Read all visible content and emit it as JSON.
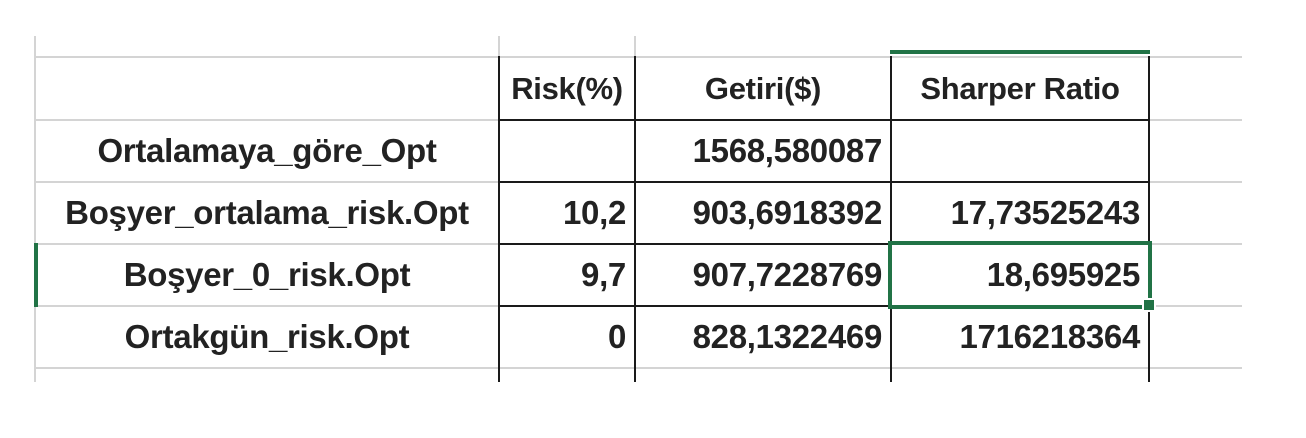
{
  "table": {
    "headers": [
      "",
      "Risk(%)",
      "Getiri($)",
      "Sharper Ratio"
    ],
    "rows": [
      {
        "label": "Ortalamaya_göre_Opt",
        "risk": "",
        "getiri": "1568,580087",
        "sharpe": ""
      },
      {
        "label": "Boşyer_ortalama_risk.Opt",
        "risk": "10,2",
        "getiri": "903,6918392",
        "sharpe": "17,73525243"
      },
      {
        "label": "Boşyer_0_risk.Opt",
        "risk": "9,7",
        "getiri": "907,7228769",
        "sharpe": "18,695925"
      },
      {
        "label": "Ortakgün_risk.Opt",
        "risk": "0",
        "getiri": "828,1322469",
        "sharpe": "1716218364"
      }
    ]
  },
  "selection": {
    "active_cell": "Sharper Ratio / Boşyer_0_risk.Opt",
    "accent_color": "#217346"
  },
  "colors": {
    "border": "#1a1a1a",
    "gridline": "#d4d4d4",
    "text": "#222222"
  }
}
